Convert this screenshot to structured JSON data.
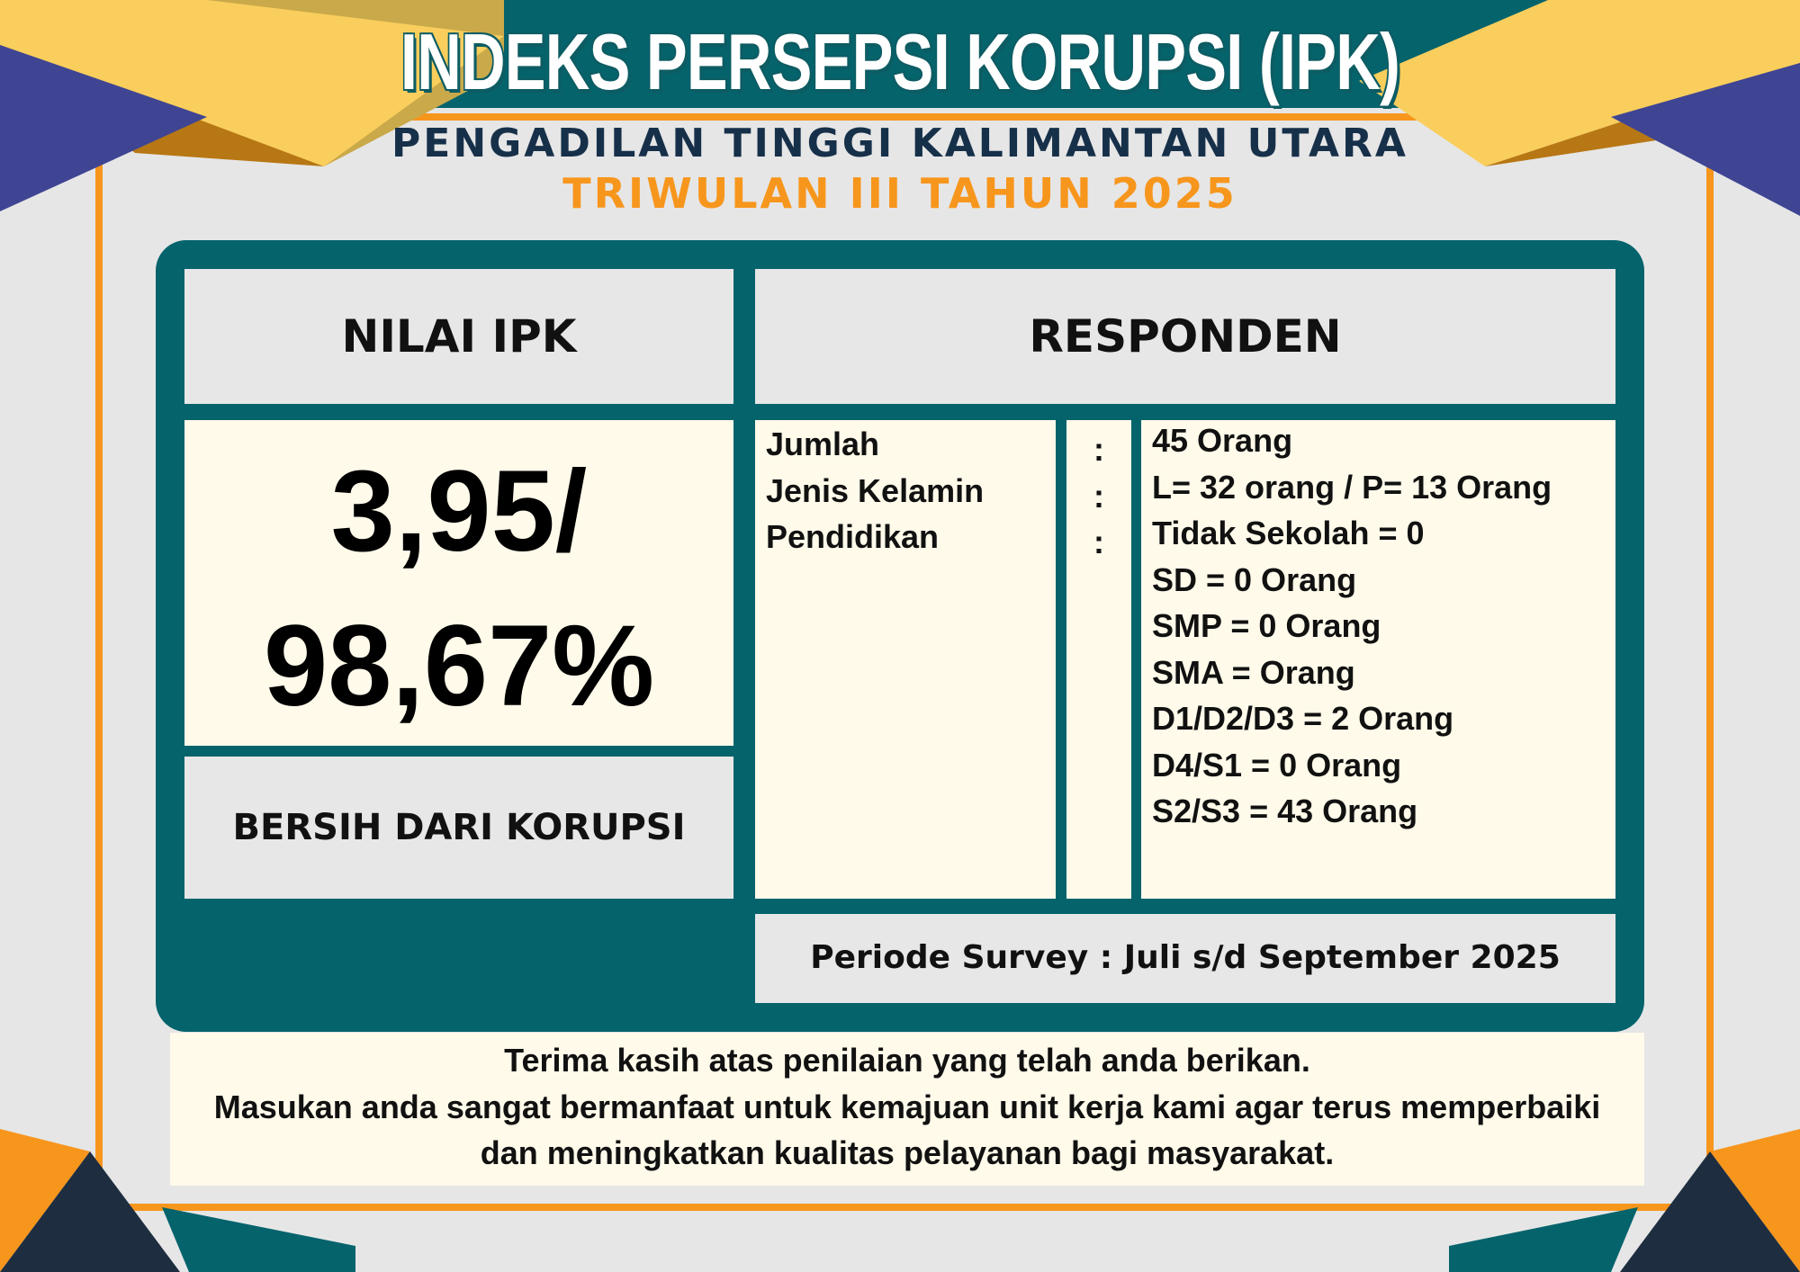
{
  "header": {
    "title": "INDEKS PERSEPSI KORUPSI (IPK)",
    "subtitle": "PENGADILAN TINGGI KALIMANTAN UTARA",
    "period": "TRIWULAN III TAHUN 2025"
  },
  "ipk": {
    "heading": "NILAI IPK",
    "score_line1": "3,95/",
    "score_line2": "98,67%",
    "category": "BERSIH DARI KORUPSI"
  },
  "responden": {
    "heading": "RESPONDEN",
    "labels": [
      "Jumlah",
      "Jenis Kelamin",
      "Pendidikan"
    ],
    "colons": [
      ":",
      ":",
      ":"
    ],
    "values": [
      "45 Orang",
      "L= 32 orang / P= 13 Orang",
      "Tidak Sekolah = 0",
      "SD = 0 Orang",
      "SMP = 0 Orang",
      "SMA =  Orang",
      "D1/D2/D3 =  2 Orang",
      "D4/S1 = 0 Orang",
      "S2/S3 = 43 Orang"
    ],
    "periode": "Periode Survey : Juli s/d September 2025"
  },
  "footer_note": [
    "Terima kasih atas penilaian yang telah anda berikan.",
    "Masukan anda sangat bermanfaat untuk kemajuan unit kerja kami agar terus memperbaiki",
    "dan meningkatkan kualitas pelayanan bagi masyarakat."
  ],
  "colors": {
    "teal": "#05636c",
    "orange": "#f7961d",
    "navy": "#17304a",
    "gold": "#f9ce5c",
    "indigo": "#3f4593",
    "cream": "#fffaea",
    "grey": "#e7e7e7"
  }
}
